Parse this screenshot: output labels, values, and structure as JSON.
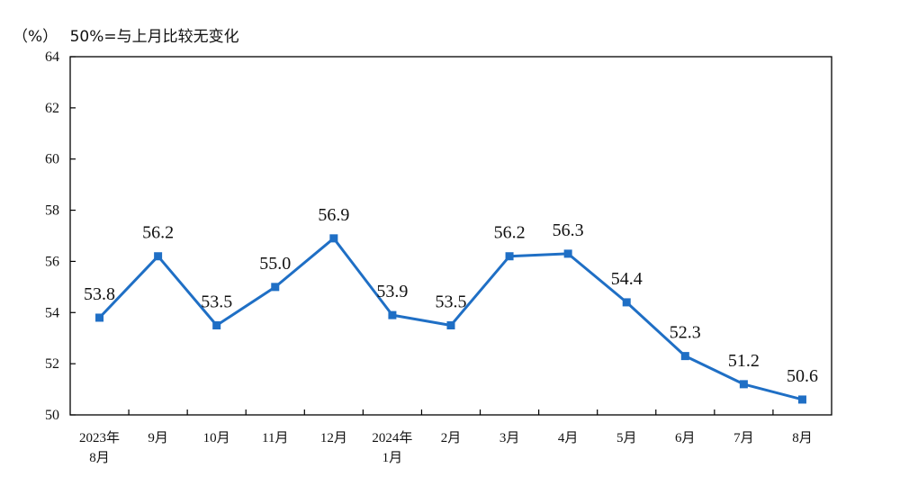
{
  "header": {
    "unit_label": "（%）",
    "note": "50%=与上月比较无变化"
  },
  "colors": {
    "line": "#1f6fc5",
    "axis": "#000000",
    "text": "#111111"
  },
  "chart_data": {
    "type": "line",
    "categories": [
      [
        "2023年",
        "8月"
      ],
      [
        "9月"
      ],
      [
        "10月"
      ],
      [
        "11月"
      ],
      [
        "12月"
      ],
      [
        "2024年",
        "1月"
      ],
      [
        "2月"
      ],
      [
        "3月"
      ],
      [
        "4月"
      ],
      [
        "5月"
      ],
      [
        "6月"
      ],
      [
        "7月"
      ],
      [
        "8月"
      ]
    ],
    "values": [
      53.8,
      56.2,
      53.5,
      55.0,
      56.9,
      53.9,
      53.5,
      56.2,
      56.3,
      54.4,
      52.3,
      51.2,
      50.6
    ],
    "data_labels": [
      "53.8",
      "56.2",
      "53.5",
      "55.0",
      "56.9",
      "53.9",
      "53.5",
      "56.2",
      "56.3",
      "54.4",
      "52.3",
      "51.2",
      "50.6"
    ],
    "ylim": [
      50,
      64
    ],
    "yticks": [
      50,
      52,
      54,
      56,
      58,
      60,
      62,
      64
    ],
    "grid": false,
    "legend": "none",
    "marker": "square"
  }
}
